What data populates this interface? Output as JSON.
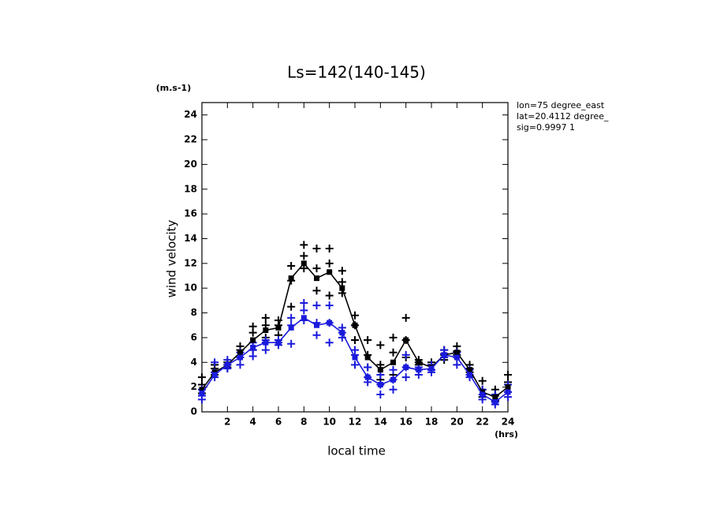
{
  "chart_data": {
    "type": "line",
    "title": "Ls=142(140-145)",
    "y_unit": "(m.s-1)",
    "x_unit": "(hrs)",
    "y_label": "wind velocity",
    "x_label": "local time",
    "annotations": [
      "lon=75 degree_east",
      "lat=20.4112 degree_",
      "sig=0.9997 1"
    ],
    "xlim": [
      0,
      24
    ],
    "ylim": [
      0,
      25
    ],
    "xticks": [
      2,
      4,
      6,
      8,
      10,
      12,
      14,
      16,
      18,
      20,
      22,
      24
    ],
    "yticks": [
      0,
      2,
      4,
      6,
      8,
      10,
      12,
      14,
      16,
      18,
      20,
      22,
      24
    ],
    "x": [
      0,
      1,
      2,
      3,
      4,
      5,
      6,
      7,
      8,
      9,
      10,
      11,
      12,
      13,
      14,
      15,
      16,
      17,
      18,
      19,
      20,
      21,
      22,
      23,
      24
    ],
    "series": [
      {
        "color": "#000000",
        "values": [
          1.8,
          3.2,
          3.8,
          4.8,
          5.8,
          6.6,
          6.8,
          10.8,
          12.0,
          10.8,
          11.3,
          10.0,
          7.0,
          4.4,
          3.4,
          4.0,
          5.8,
          4.0,
          3.6,
          4.6,
          4.8,
          3.4,
          1.6,
          1.2,
          2.0
        ]
      },
      {
        "color": "#1a1adc",
        "values": [
          1.5,
          3.0,
          3.8,
          4.4,
          5.2,
          5.6,
          5.6,
          6.8,
          7.6,
          7.0,
          7.2,
          6.4,
          4.4,
          2.8,
          2.2,
          2.6,
          3.6,
          3.4,
          3.5,
          4.6,
          4.4,
          3.0,
          1.4,
          0.8,
          1.6
        ]
      }
    ],
    "samples": [
      {
        "color": "#000000",
        "x": [
          0,
          0,
          0,
          1,
          1,
          1,
          2,
          2,
          2,
          3,
          3,
          3,
          4,
          4,
          4,
          5,
          5,
          5,
          6,
          6,
          6,
          7,
          7,
          7,
          8,
          8,
          8,
          9,
          9,
          9,
          10,
          10,
          10,
          11,
          11,
          11,
          12,
          12,
          12,
          13,
          13,
          13,
          14,
          14,
          14,
          15,
          15,
          15,
          16,
          16,
          16,
          17,
          17,
          17,
          18,
          18,
          18,
          19,
          19,
          19,
          20,
          20,
          20,
          21,
          21,
          21,
          22,
          22,
          22,
          23,
          23,
          23,
          24,
          24,
          24
        ],
        "y": [
          1.5,
          2.2,
          2.8,
          3.0,
          3.5,
          3.8,
          3.6,
          4.0,
          3.8,
          4.4,
          5.0,
          5.3,
          5.0,
          6.4,
          6.9,
          6.0,
          7.0,
          7.6,
          6.2,
          7.0,
          7.4,
          8.5,
          10.6,
          11.8,
          11.6,
          12.6,
          13.5,
          9.8,
          11.6,
          13.2,
          9.4,
          12.0,
          13.2,
          9.6,
          10.5,
          11.4,
          5.8,
          7.0,
          7.8,
          3.6,
          4.6,
          5.8,
          2.6,
          3.8,
          5.4,
          3.0,
          4.8,
          6.0,
          4.4,
          5.8,
          7.6,
          3.8,
          4.0,
          4.2,
          3.4,
          3.8,
          4.0,
          4.2,
          4.6,
          5.0,
          4.6,
          4.9,
          5.3,
          3.2,
          3.5,
          3.8,
          1.2,
          1.8,
          2.5,
          0.9,
          1.3,
          1.8,
          1.6,
          2.4,
          3.0
        ]
      },
      {
        "color": "#1a1adc",
        "x": [
          0,
          0,
          0,
          1,
          1,
          1,
          2,
          2,
          2,
          3,
          3,
          3,
          4,
          4,
          4,
          5,
          5,
          5,
          6,
          6,
          6,
          7,
          7,
          7,
          8,
          8,
          8,
          9,
          9,
          9,
          10,
          10,
          10,
          11,
          11,
          11,
          12,
          12,
          12,
          13,
          13,
          13,
          14,
          14,
          14,
          15,
          15,
          15,
          16,
          16,
          16,
          17,
          17,
          17,
          18,
          18,
          18,
          19,
          19,
          19,
          20,
          20,
          20,
          21,
          21,
          21,
          22,
          22,
          22,
          23,
          23,
          23,
          24,
          24,
          24
        ],
        "y": [
          1.0,
          1.3,
          1.8,
          2.8,
          3.2,
          4.0,
          3.5,
          3.8,
          4.2,
          3.8,
          4.4,
          4.8,
          4.5,
          5.0,
          5.6,
          5.0,
          5.6,
          5.8,
          5.4,
          5.6,
          5.8,
          5.5,
          7.0,
          7.6,
          7.4,
          8.2,
          8.8,
          6.2,
          7.2,
          8.6,
          5.6,
          7.2,
          8.6,
          6.0,
          6.4,
          6.8,
          3.8,
          4.6,
          5.0,
          2.4,
          2.8,
          3.6,
          1.4,
          2.2,
          3.0,
          1.8,
          2.6,
          3.4,
          2.8,
          3.6,
          4.6,
          3.0,
          3.4,
          3.6,
          3.2,
          3.4,
          3.8,
          4.4,
          4.7,
          5.0,
          3.8,
          4.4,
          4.8,
          2.8,
          3.0,
          3.4,
          1.0,
          1.4,
          1.8,
          0.6,
          0.8,
          1.4,
          1.2,
          1.6,
          2.2
        ]
      }
    ]
  }
}
